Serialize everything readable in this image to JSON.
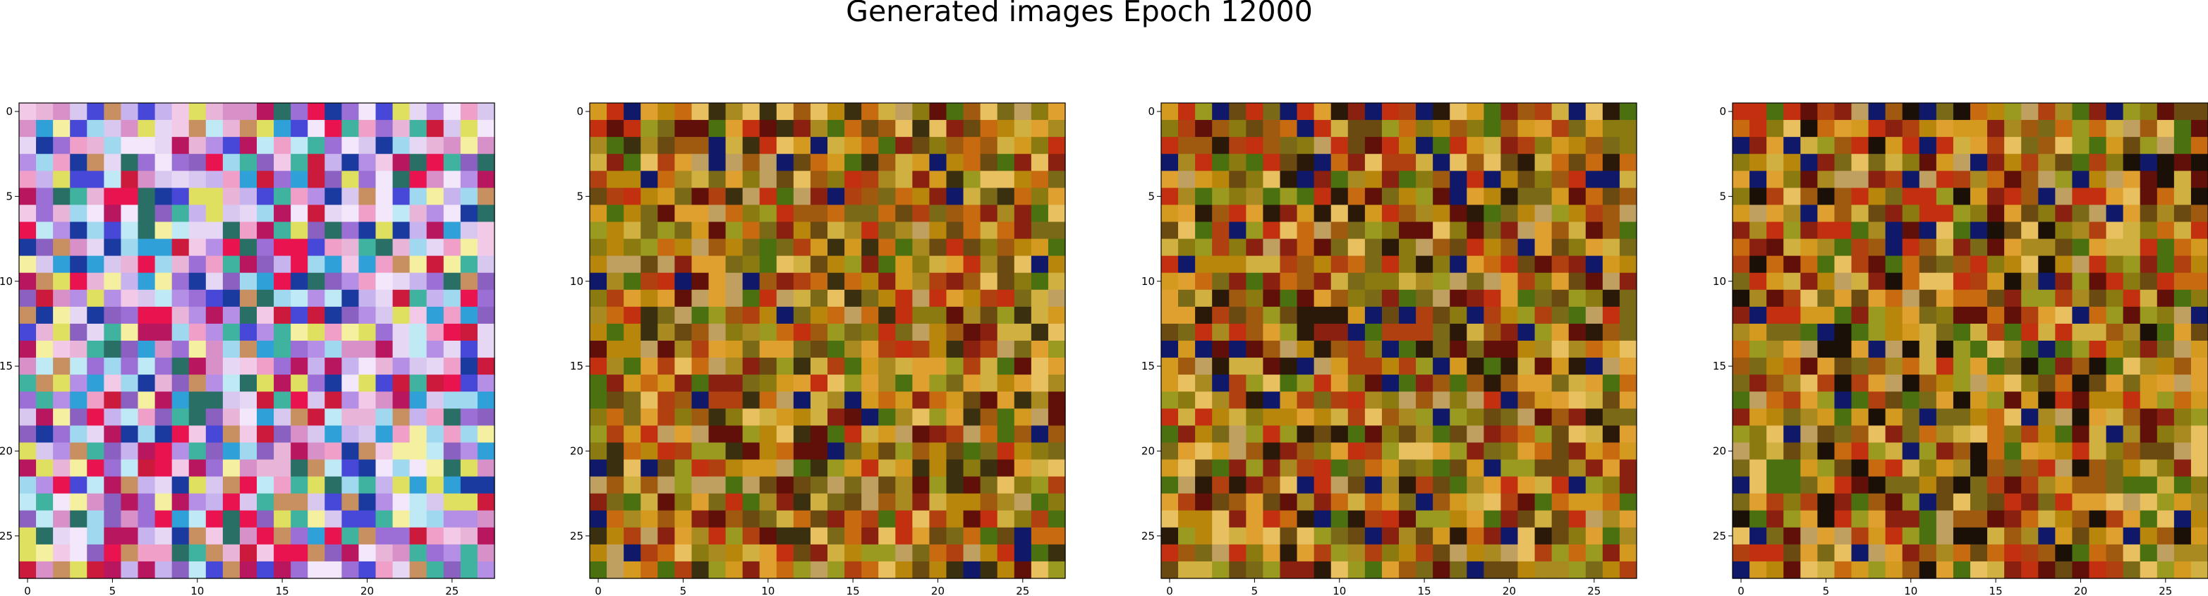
{
  "figure": {
    "title": "Generated images Epoch 12000"
  },
  "chart_data": [
    {
      "type": "heatmap",
      "name": "panel-1",
      "grid_size": [
        28,
        28
      ],
      "xlim": [
        -0.5,
        27.5
      ],
      "ylim": [
        27.5,
        -0.5
      ],
      "x_ticks": [
        0,
        5,
        10,
        15,
        20,
        25
      ],
      "y_ticks": [
        0,
        5,
        10,
        15,
        20,
        25
      ],
      "palette": [
        "#e6d8f5",
        "#d8c8f0",
        "#c7b4ee",
        "#f3e8fb",
        "#bfe9f5",
        "#f2c9e6",
        "#e8b4d8",
        "#b58ee6",
        "#d890c8",
        "#9b6fd6",
        "#cc1a3c",
        "#e8134f",
        "#b8165e",
        "#f0a0c8",
        "#3fb3a0",
        "#2a6f66",
        "#1a3aa0",
        "#4848d8",
        "#e0e060",
        "#f4f0a0",
        "#c89060",
        "#8a60c0",
        "#30a0d8",
        "#a0d8f0"
      ],
      "seed": 11
    },
    {
      "type": "heatmap",
      "name": "panel-2",
      "grid_size": [
        28,
        28
      ],
      "xlim": [
        -0.5,
        27.5
      ],
      "ylim": [
        27.5,
        -0.5
      ],
      "x_ticks": [
        0,
        5,
        10,
        15,
        20,
        25
      ],
      "y_ticks": [
        0,
        5,
        10,
        15,
        20,
        25
      ],
      "palette": [
        "#b8860b",
        "#c86a10",
        "#a05a10",
        "#8a7a10",
        "#d49a20",
        "#c23010",
        "#8a2010",
        "#6a4a10",
        "#9a9a20",
        "#e0a030",
        "#b04010",
        "#7a6a18",
        "#d0b040",
        "#a88a20",
        "#601008",
        "#3a3010",
        "#e8c060",
        "#10186a",
        "#4a7010",
        "#c0a060"
      ],
      "seed": 22
    },
    {
      "type": "heatmap",
      "name": "panel-3",
      "grid_size": [
        28,
        28
      ],
      "xlim": [
        -0.5,
        27.5
      ],
      "ylim": [
        27.5,
        -0.5
      ],
      "x_ticks": [
        0,
        5,
        10,
        15,
        20,
        25
      ],
      "y_ticks": [
        0,
        5,
        10,
        15,
        20,
        25
      ],
      "palette": [
        "#b8860b",
        "#c86a10",
        "#a05a10",
        "#8a7a10",
        "#d49a20",
        "#c23010",
        "#8a2010",
        "#6a4a10",
        "#9a9a20",
        "#e0a030",
        "#b04010",
        "#7a6a18",
        "#d0b040",
        "#a88a20",
        "#601008",
        "#2a1808",
        "#e8c060",
        "#10186a",
        "#4a7010",
        "#c0a060"
      ],
      "seed": 33
    },
    {
      "type": "heatmap",
      "name": "panel-4",
      "grid_size": [
        28,
        28
      ],
      "xlim": [
        -0.5,
        27.5
      ],
      "ylim": [
        27.5,
        -0.5
      ],
      "x_ticks": [
        0,
        5,
        10,
        15,
        20,
        25
      ],
      "y_ticks": [
        0,
        5,
        10,
        15,
        20,
        25
      ],
      "palette": [
        "#b8860b",
        "#c86a10",
        "#a05a10",
        "#8a7a10",
        "#d49a20",
        "#c23010",
        "#8a2010",
        "#6a4a10",
        "#9a9a20",
        "#e0a030",
        "#b04010",
        "#7a6a18",
        "#d0b040",
        "#a88a20",
        "#601008",
        "#1a1008",
        "#e8c060",
        "#10186a",
        "#4a7010",
        "#c0a060"
      ],
      "seed": 44
    }
  ]
}
